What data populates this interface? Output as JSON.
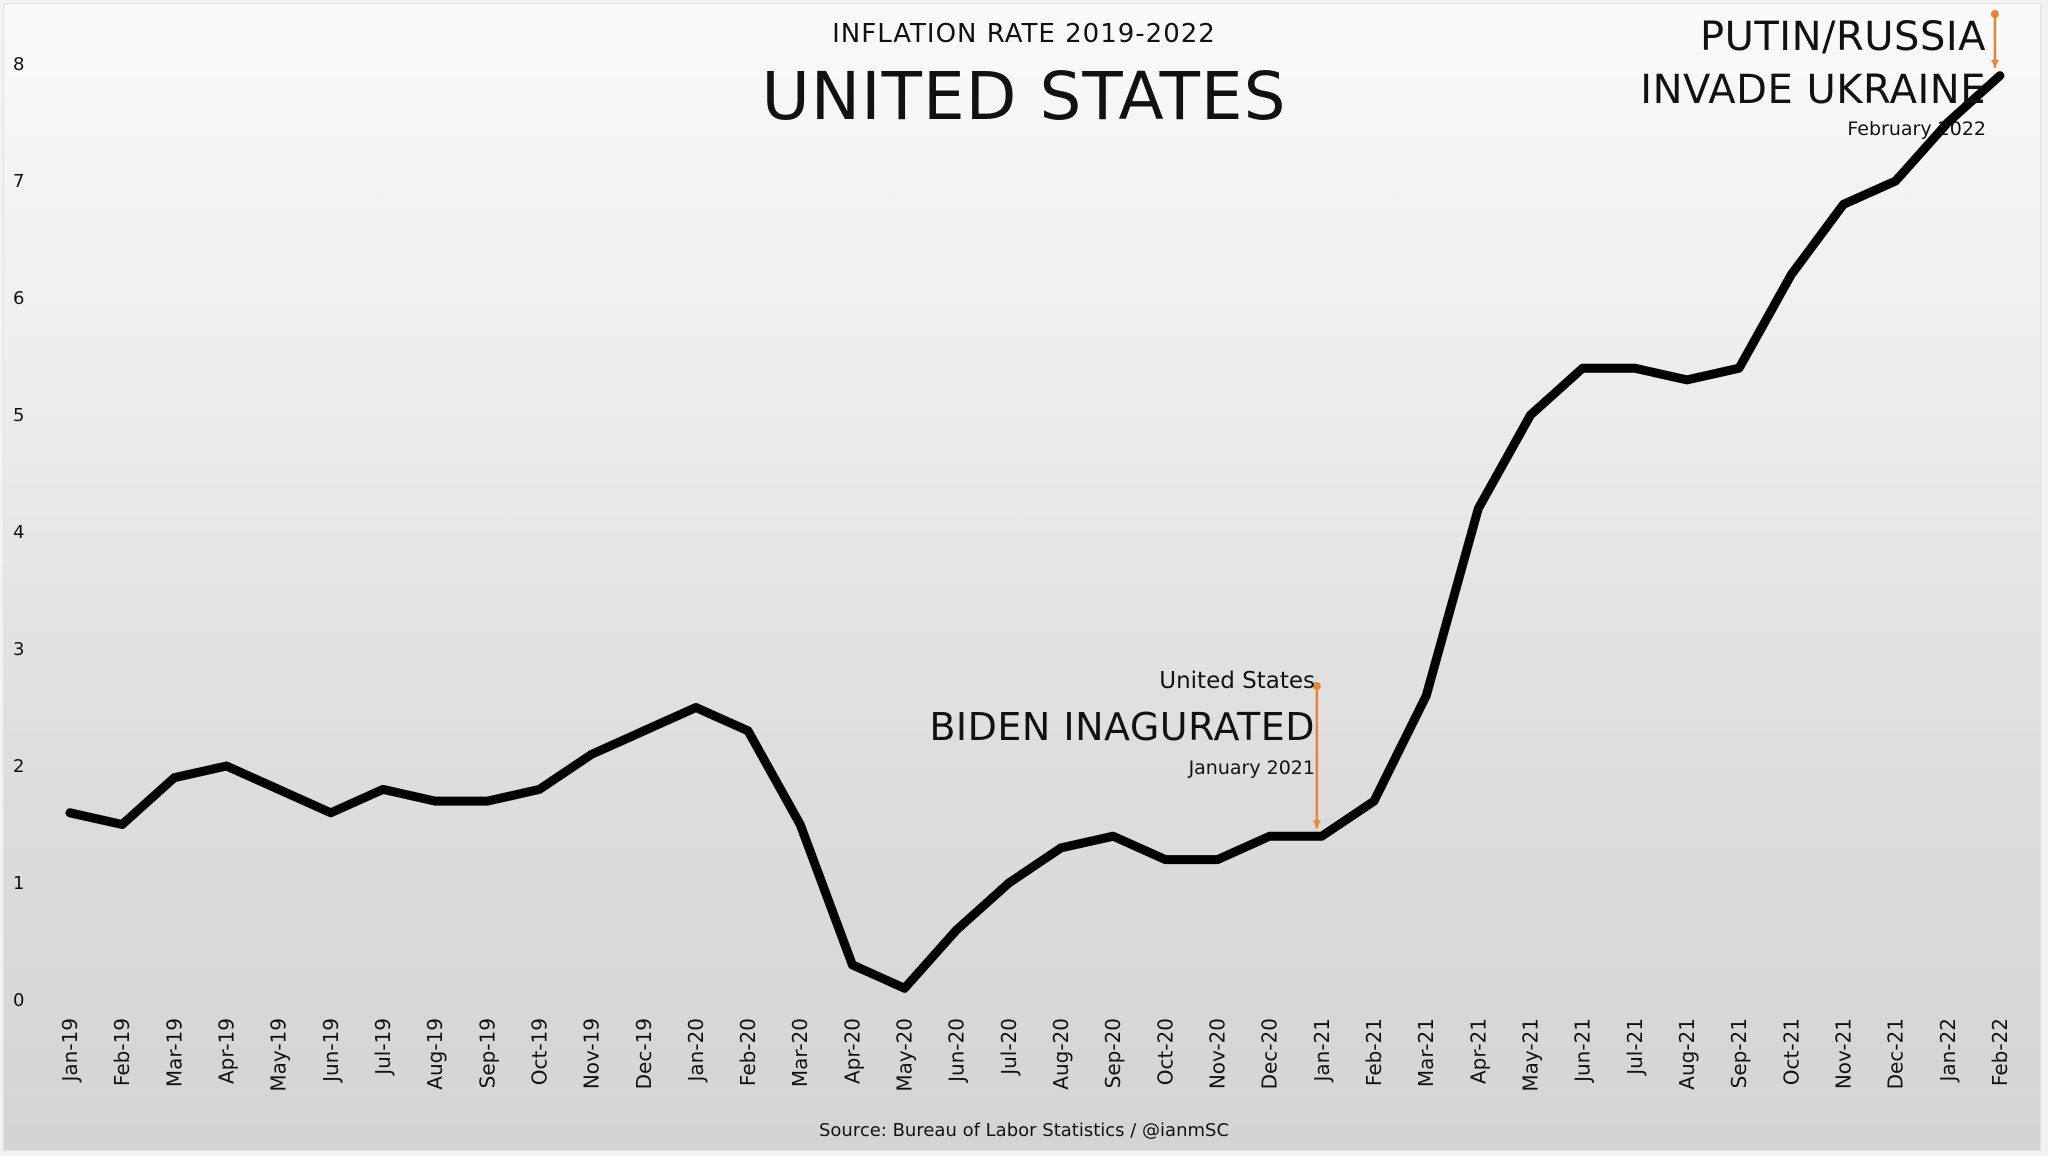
{
  "subtitle": "INFLATION RATE 2019-2022",
  "title": "UNITED STATES",
  "source": "Source: Bureau of Labor Statistics / @ianmSC",
  "annotations": {
    "biden": {
      "line1": "United States",
      "line2": "BIDEN INAGURATED",
      "line3": "January 2021"
    },
    "putin": {
      "line1": "PUTIN/RUSSIA",
      "line2": "INVADE UKRAINE",
      "line3": "February 2022"
    }
  },
  "colors": {
    "line": "#000000",
    "annotation": "#e8853a"
  },
  "chart_data": {
    "type": "line",
    "categories": [
      "Jan-19",
      "Feb-19",
      "Mar-19",
      "Apr-19",
      "May-19",
      "Jun-19",
      "Jul-19",
      "Aug-19",
      "Sep-19",
      "Oct-19",
      "Nov-19",
      "Dec-19",
      "Jan-20",
      "Feb-20",
      "Mar-20",
      "Apr-20",
      "May-20",
      "Jun-20",
      "Jul-20",
      "Aug-20",
      "Sep-20",
      "Oct-20",
      "Nov-20",
      "Dec-20",
      "Jan-21",
      "Feb-21",
      "Mar-21",
      "Apr-21",
      "May-21",
      "Jun-21",
      "Jul-21",
      "Aug-21",
      "Sep-21",
      "Oct-21",
      "Nov-21",
      "Dec-21",
      "Jan-22",
      "Feb-22"
    ],
    "series": [
      {
        "values": [
          1.6,
          1.5,
          1.9,
          2.0,
          1.8,
          1.6,
          1.8,
          1.7,
          1.7,
          1.8,
          2.1,
          2.3,
          2.5,
          2.3,
          1.5,
          0.3,
          0.1,
          0.6,
          1.0,
          1.3,
          1.4,
          1.2,
          1.2,
          1.4,
          1.4,
          1.7,
          2.6,
          4.2,
          5.0,
          5.4,
          5.4,
          5.3,
          5.4,
          6.2,
          6.8,
          7.0,
          7.5,
          7.9
        ]
      }
    ],
    "ylim": [
      0,
      8
    ],
    "yticks": [
      0,
      1,
      2,
      3,
      4,
      5,
      6,
      7,
      8
    ],
    "grid": false,
    "title": "UNITED STATES",
    "subtitle": "INFLATION RATE 2019-2022"
  }
}
